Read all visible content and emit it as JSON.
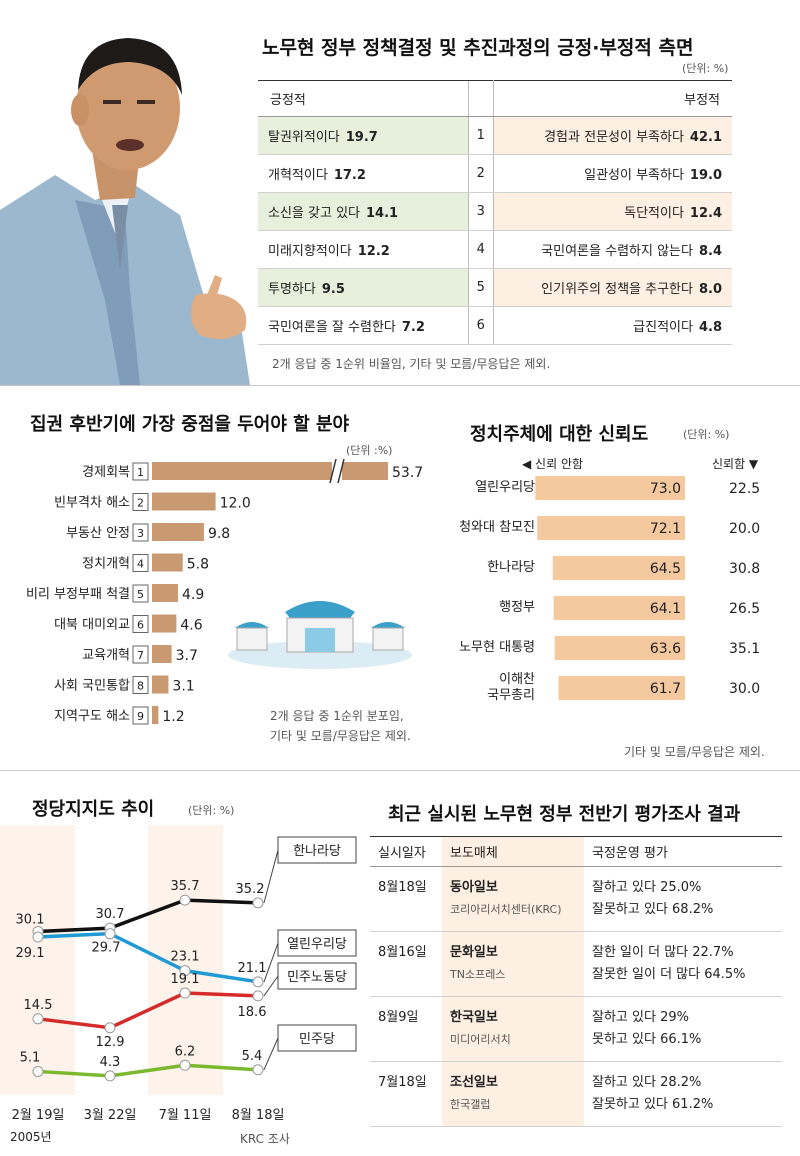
{
  "section1": {
    "title": "노무현 정부 정책결정 및 추진과정의 긍정·부정적 측면",
    "unit": "(단위: %)",
    "header_pos": "긍정적",
    "header_neg": "부정적",
    "rows": [
      {
        "rank": "1",
        "pos_label": "탈권위적이다",
        "pos_value": "19.7",
        "neg_label": "경험과 전문성이 부족하다",
        "neg_value": "42.1"
      },
      {
        "rank": "2",
        "pos_label": "개혁적이다",
        "pos_value": "17.2",
        "neg_label": "일관성이 부족하다",
        "neg_value": "19.0"
      },
      {
        "rank": "3",
        "pos_label": "소신을 갖고 있다",
        "pos_value": "14.1",
        "neg_label": "독단적이다",
        "neg_value": "12.4"
      },
      {
        "rank": "4",
        "pos_label": "미래지향적이다",
        "pos_value": "12.2",
        "neg_label": "국민여론을 수렴하지 않는다",
        "neg_value": "8.4"
      },
      {
        "rank": "5",
        "pos_label": "투명하다",
        "pos_value": "9.5",
        "neg_label": "인기위주의 정책을 추구한다",
        "neg_value": "8.0"
      },
      {
        "rank": "6",
        "pos_label": "국민여론을 잘 수렴한다",
        "pos_value": "7.2",
        "neg_label": "급진적이다",
        "neg_value": "4.8"
      }
    ],
    "note": "2개 응답 중 1순위 비율임, 기타 및 모름/무응답은 제외."
  },
  "section2": {
    "title": "집권 후반기에 가장 중점을 두어야 할 분야",
    "unit": "(단위 :%)",
    "note1": "2개 응답 중 1순위 분포임,",
    "note2": "기타 및 모름/무응답은 제외."
  },
  "section3": {
    "title": "정치주체에 대한 신뢰도",
    "unit": "(단위: %)",
    "legend_left": "◀ 신뢰 안함",
    "legend_right": "신뢰함 ▼",
    "note": "기타 및 모름/무응답은 제외."
  },
  "section4": {
    "title": "정당지지도 추이",
    "unit": "(단위: %)",
    "year_label": "2005년",
    "source": "KRC 조사"
  },
  "section5": {
    "title": "최근 실시된 노무현 정부 전반기 평가조사 결과",
    "headers": [
      "실시일자",
      "보도매체",
      "국정운영 평가"
    ],
    "rows": [
      {
        "date": "8월18일",
        "media": "동아일보",
        "agency": "코리아리서치센터(KRC)",
        "eval1": "잘하고 있다 25.0%",
        "eval2": "잘못하고 있다 68.2%"
      },
      {
        "date": "8월16일",
        "media": "문화일보",
        "agency": "TN소프레스",
        "eval1": "잘한 일이 더 많다 22.7%",
        "eval2": "잘못한 일이 더 많다 64.5%"
      },
      {
        "date": "8월9일",
        "media": "한국일보",
        "agency": "미디어리서치",
        "eval1": "잘하고 있다 29%",
        "eval2": "못하고 있다 66.1%"
      },
      {
        "date": "7월18일",
        "media": "조선일보",
        "agency": "한국갤럽",
        "eval1": "잘하고 있다 28.2%",
        "eval2": "잘못하고 있다 61.2%"
      }
    ]
  },
  "colors": {
    "bar": "#c99a72",
    "trust_bar": "#f5c9a0",
    "hannara": "#111111",
    "uri": "#1f9ad6",
    "minju_labor": "#d62b2b",
    "minju": "#7ab82e",
    "stripe": "#fdf0e3",
    "pos_bg": "#e6f0dc"
  },
  "chart_data": [
    {
      "type": "bar",
      "categories": [
        "경제회복",
        "빈부격차 해소",
        "부동산 안정",
        "정치개혁",
        "비리 부정부패 척결",
        "대북 대미외교",
        "교육개혁",
        "사회 국민통합",
        "지역구도 해소"
      ],
      "ranks": [
        "1",
        "2",
        "3",
        "4",
        "5",
        "6",
        "7",
        "8",
        "9"
      ],
      "values": [
        53.7,
        12.0,
        9.8,
        5.8,
        4.9,
        4.6,
        3.7,
        3.1,
        1.2
      ],
      "value_labels": [
        "53.7",
        "12.0",
        "9.8",
        "5.8",
        "4.9",
        "4.6",
        "3.7",
        "3.1",
        "1.2"
      ],
      "axis_break": true
    },
    {
      "type": "bar",
      "categories": [
        "열린우리당",
        "청와대 참모진",
        "한나라당",
        "행정부",
        "노무현 대통령",
        "이해찬\n국무총리"
      ],
      "series": [
        {
          "name": "신뢰 안함",
          "values": [
            73.0,
            72.1,
            64.5,
            64.1,
            63.6,
            61.7
          ],
          "labels": [
            "73.0",
            "72.1",
            "64.5",
            "64.1",
            "63.6",
            "61.7"
          ]
        },
        {
          "name": "신뢰함",
          "values": [
            22.5,
            20.0,
            30.8,
            26.5,
            35.1,
            30.0
          ],
          "labels": [
            "22.5",
            "20.0",
            "30.8",
            "26.5",
            "35.1",
            "30.0"
          ]
        }
      ]
    },
    {
      "type": "line",
      "x": [
        "2월 19일",
        "3월 22일",
        "7월 11일",
        "8월 18일"
      ],
      "ylim": [
        0,
        40
      ],
      "series": [
        {
          "name": "한나라당",
          "values": [
            30.1,
            30.7,
            35.7,
            35.2
          ],
          "labels": [
            "30.1",
            "30.7",
            "35.7",
            "35.2"
          ]
        },
        {
          "name": "열린우리당",
          "values": [
            29.1,
            29.7,
            23.1,
            21.1
          ],
          "labels": [
            "29.1",
            "29.7",
            "23.1",
            "21.1"
          ]
        },
        {
          "name": "민주노동당",
          "values": [
            14.5,
            12.9,
            19.1,
            18.6
          ],
          "labels": [
            "14.5",
            "12.9",
            "19.1",
            "18.6"
          ]
        },
        {
          "name": "민주당",
          "values": [
            5.1,
            4.3,
            6.2,
            5.4
          ],
          "labels": [
            "5.1",
            "4.3",
            "6.2",
            "5.4"
          ]
        }
      ]
    }
  ]
}
